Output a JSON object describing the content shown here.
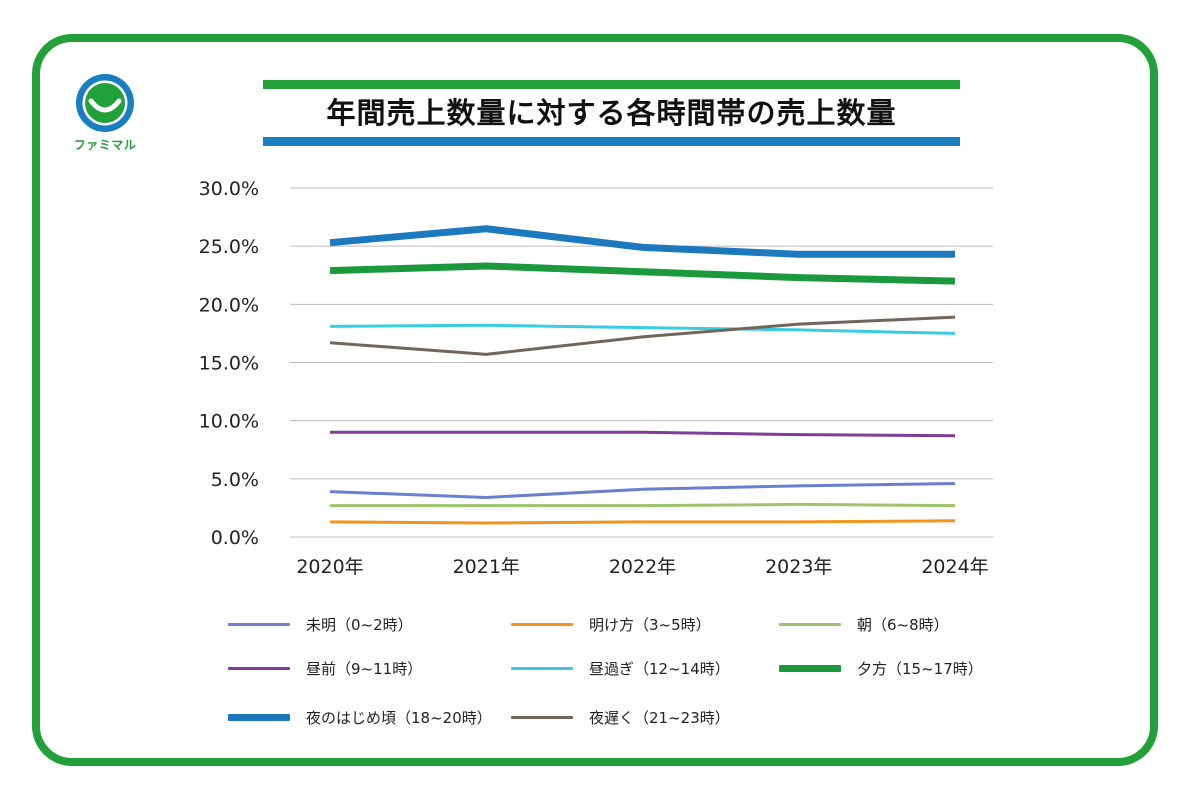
{
  "brand": {
    "logo_text": "ファミマル",
    "primary_color": "#22a039",
    "secondary_color": "#1a7fc1"
  },
  "title": "年間売上数量に対する各時間帯の売上数量",
  "chart_data": {
    "type": "line",
    "title": "年間売上数量に対する各時間帯の売上数量",
    "xlabel": "",
    "ylabel": "",
    "categories": [
      "2020年",
      "2021年",
      "2022年",
      "2023年",
      "2024年"
    ],
    "ylim": [
      0,
      30
    ],
    "yticks": [
      "0.0%",
      "5.0%",
      "10.0%",
      "15.0%",
      "20.0%",
      "25.0%",
      "30.0%"
    ],
    "grid": true,
    "legend_position": "bottom",
    "series": [
      {
        "name": "未明（0~2時）",
        "color": "#6b7fd0",
        "weight": "thin",
        "values": [
          3.9,
          3.4,
          4.1,
          4.4,
          4.6
        ]
      },
      {
        "name": "明け方（3~5時）",
        "color": "#f0961e",
        "weight": "thin",
        "values": [
          1.3,
          1.2,
          1.3,
          1.3,
          1.4
        ]
      },
      {
        "name": "朝（6~8時）",
        "color": "#9cc46a",
        "weight": "thin",
        "values": [
          2.7,
          2.7,
          2.7,
          2.8,
          2.7
        ]
      },
      {
        "name": "昼前（9~11時）",
        "color": "#7e3d96",
        "weight": "thin",
        "values": [
          9.0,
          9.0,
          9.0,
          8.8,
          8.7
        ]
      },
      {
        "name": "昼過ぎ（12~14時）",
        "color": "#38cde0",
        "weight": "thin",
        "values": [
          18.1,
          18.2,
          18.0,
          17.8,
          17.5
        ]
      },
      {
        "name": "夕方（15~17時）",
        "color": "#1a9a3c",
        "weight": "thick",
        "values": [
          22.9,
          23.3,
          22.8,
          22.3,
          22.0
        ]
      },
      {
        "name": "夜のはじめ頃（18~20時）",
        "color": "#1d79bd",
        "weight": "thick",
        "values": [
          25.3,
          26.5,
          24.9,
          24.3,
          24.3
        ]
      },
      {
        "name": "夜遅く（21~23時）",
        "color": "#74655a",
        "weight": "thin",
        "values": [
          16.7,
          15.7,
          17.2,
          18.3,
          18.9
        ]
      }
    ]
  }
}
